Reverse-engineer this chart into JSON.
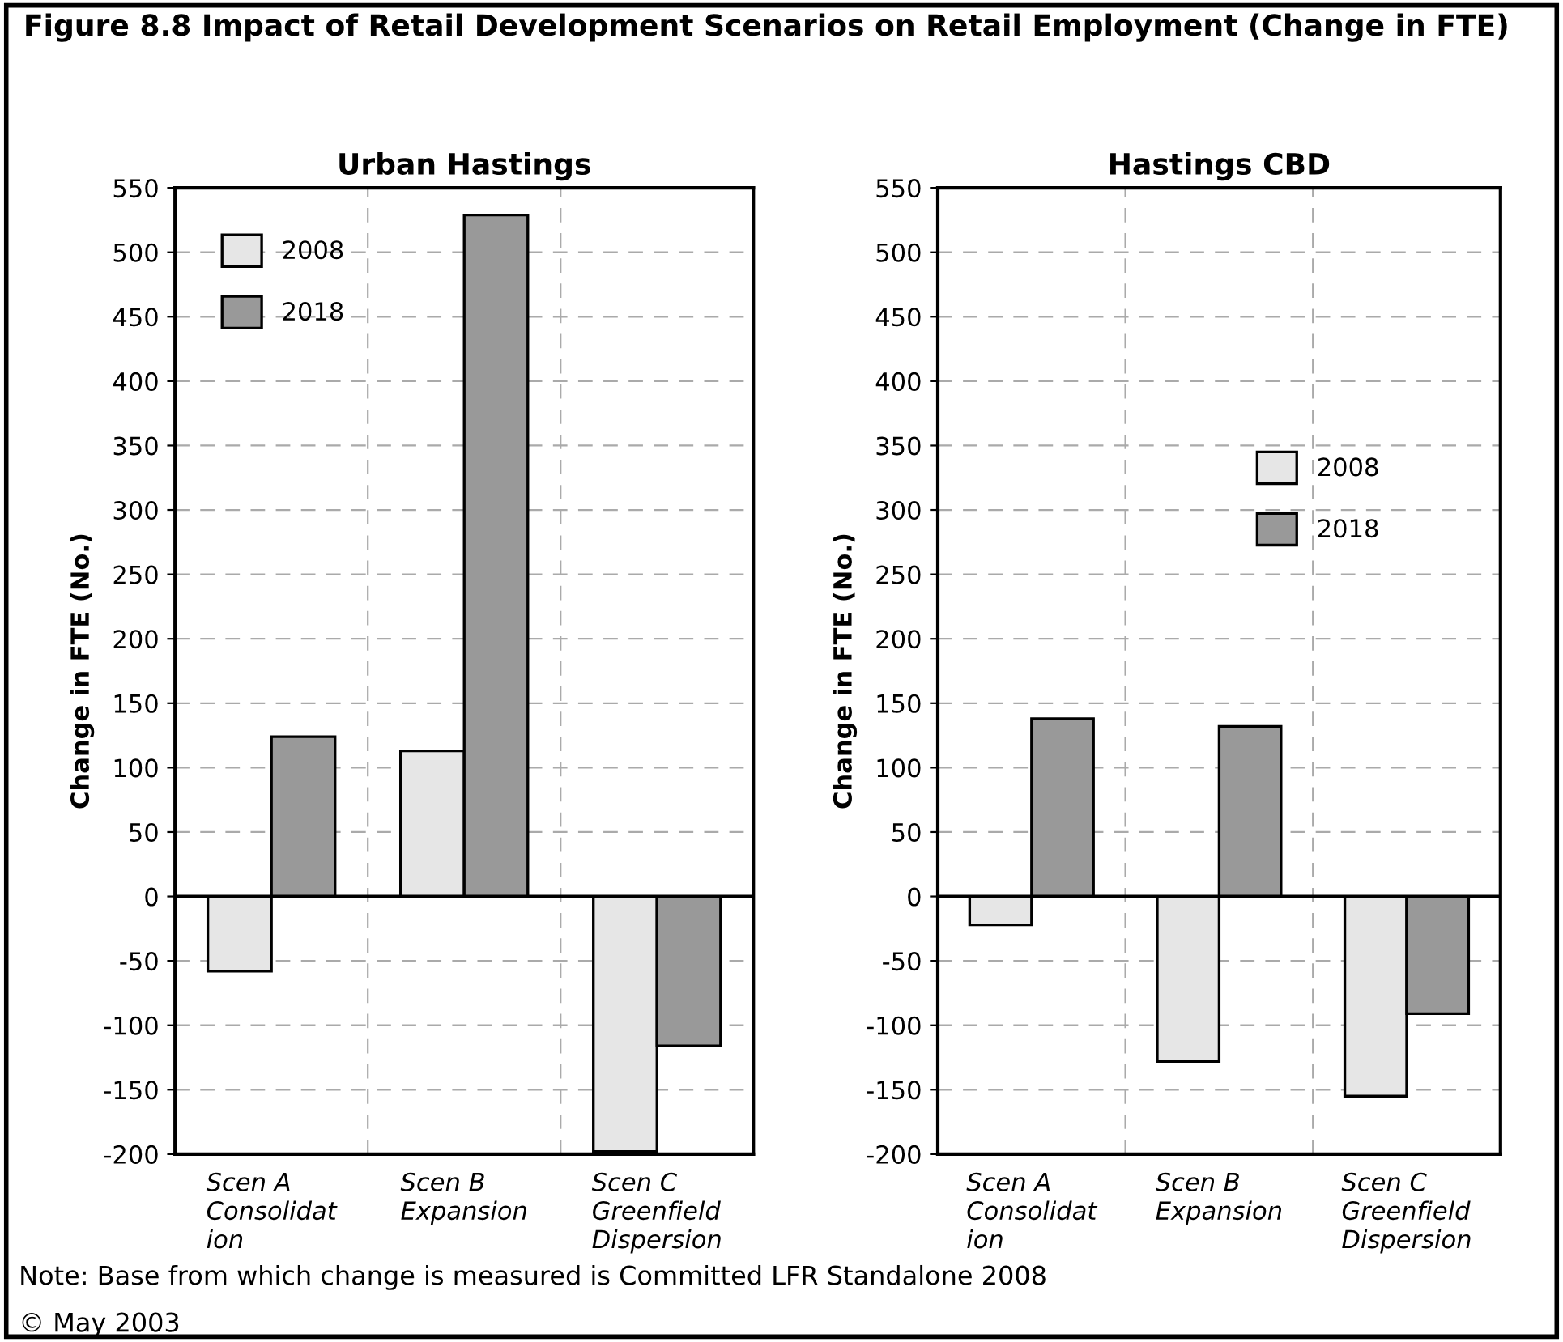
{
  "chart_data": [
    {
      "type": "bar",
      "title": "Urban Hastings",
      "ylabel": "Change in FTE (No.)",
      "annotations": [
        "Figure 8.8 Impact of Retail Development Scenarios on Retail Employment (Change in FTE)",
        "Note: Base from which change is measured is Committed LFR Standalone 2008",
        "© May 2003"
      ],
      "categories": [
        "Scen A\nConsolidat\nion",
        "Scen B\nExpansion",
        "Scen C\nGreenfield\nDispersion"
      ],
      "series": [
        {
          "name": "2008",
          "color": "#e6e6e6",
          "values": [
            -58,
            113,
            -198
          ]
        },
        {
          "name": "2018",
          "color": "#999999",
          "values": [
            124,
            529,
            -116
          ]
        }
      ],
      "ylim": [
        -200,
        550
      ],
      "yticks": [
        -200,
        -150,
        -100,
        -50,
        0,
        50,
        100,
        150,
        200,
        250,
        300,
        350,
        400,
        450,
        500,
        550
      ],
      "grid": true,
      "legend": "top left"
    },
    {
      "type": "bar",
      "title": "Hastings CBD",
      "ylabel": "Change in FTE (No.)",
      "categories": [
        "Scen A\nConsolidat\nion",
        "Scen B\nExpansion",
        "Scen C\nGreenfield\nDispersion"
      ],
      "series": [
        {
          "name": "2008",
          "color": "#e6e6e6",
          "values": [
            -22,
            -128,
            -155
          ]
        },
        {
          "name": "2018",
          "color": "#999999",
          "values": [
            138,
            132,
            -91
          ]
        }
      ],
      "ylim": [
        -200,
        550
      ],
      "yticks": [
        -200,
        -150,
        -100,
        -50,
        0,
        50,
        100,
        150,
        200,
        250,
        300,
        350,
        400,
        450,
        500,
        550
      ],
      "grid": true,
      "legend": "top right"
    }
  ]
}
